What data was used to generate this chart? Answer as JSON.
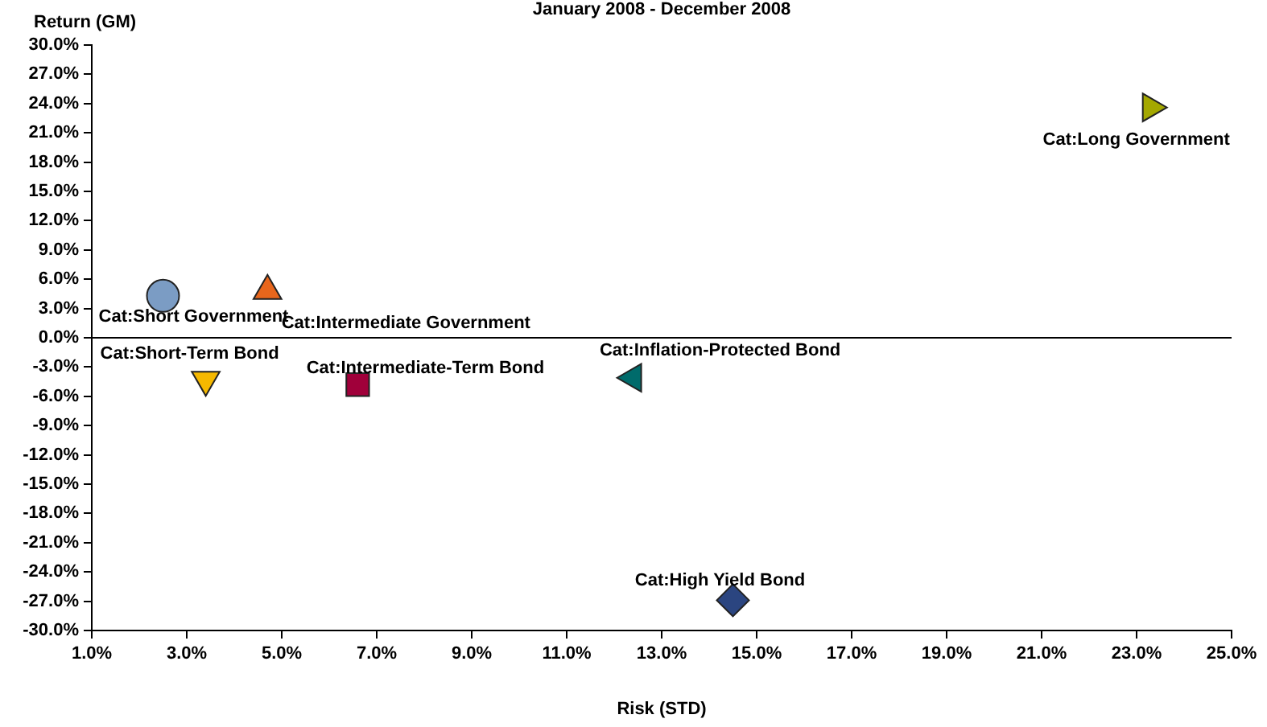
{
  "chart_data": {
    "type": "scatter",
    "title": "January 2008 - December 2008",
    "xlabel": "Risk (STD)",
    "ylabel": "Return (GM)",
    "xlim": [
      1,
      25
    ],
    "xticks": [
      {
        "value": 1,
        "label": "1.0%"
      },
      {
        "value": 3,
        "label": "3.0%"
      },
      {
        "value": 5,
        "label": "5.0%"
      },
      {
        "value": 7,
        "label": "7.0%"
      },
      {
        "value": 9,
        "label": "9.0%"
      },
      {
        "value": 11,
        "label": "11.0%"
      },
      {
        "value": 13,
        "label": "13.0%"
      },
      {
        "value": 15,
        "label": "15.0%"
      },
      {
        "value": 17,
        "label": "17.0%"
      },
      {
        "value": 19,
        "label": "19.0%"
      },
      {
        "value": 21,
        "label": "21.0%"
      },
      {
        "value": 23,
        "label": "23.0%"
      },
      {
        "value": 25,
        "label": "25.0%"
      }
    ],
    "ylim": [
      -30,
      30
    ],
    "yticks": [
      {
        "value": -30,
        "label": "-30.0%"
      },
      {
        "value": -27,
        "label": "-27.0%"
      },
      {
        "value": -24,
        "label": "-24.0%"
      },
      {
        "value": -21,
        "label": "-21.0%"
      },
      {
        "value": -18,
        "label": "-18.0%"
      },
      {
        "value": -15,
        "label": "-15.0%"
      },
      {
        "value": -12,
        "label": "-12.0%"
      },
      {
        "value": -9,
        "label": "-9.0%"
      },
      {
        "value": -6,
        "label": "-6.0%"
      },
      {
        "value": -3,
        "label": "-3.0%"
      },
      {
        "value": 0,
        "label": "0.0%"
      },
      {
        "value": 3,
        "label": "3.0%"
      },
      {
        "value": 6,
        "label": "6.0%"
      },
      {
        "value": 9,
        "label": "9.0%"
      },
      {
        "value": 12,
        "label": "12.0%"
      },
      {
        "value": 15,
        "label": "15.0%"
      },
      {
        "value": 18,
        "label": "18.0%"
      },
      {
        "value": 21,
        "label": "21.0%"
      },
      {
        "value": 24,
        "label": "24.0%"
      },
      {
        "value": 27,
        "label": "27.0%"
      },
      {
        "value": 30,
        "label": "30.0%"
      }
    ],
    "grid": false,
    "legend": false,
    "ref_lines": [
      {
        "axis": "y",
        "value": 0,
        "color": "#000000"
      }
    ],
    "series": [
      {
        "name": "Cat:Short Government",
        "color": "#7b9cc4",
        "marker": "circle",
        "x": [
          2.5
        ],
        "values": [
          4.3
        ]
      },
      {
        "name": "Cat:Intermediate Government",
        "color": "#e8661c",
        "marker": "triangle",
        "x": [
          4.7
        ],
        "values": [
          4.8
        ]
      },
      {
        "name": "Cat:Short-Term Bond",
        "color": "#f5b800",
        "marker": "triangle-down",
        "x": [
          3.4
        ],
        "values": [
          -4.3
        ]
      },
      {
        "name": "Cat:Intermediate-Term Bond",
        "color": "#a0003a",
        "marker": "square",
        "x": [
          6.6
        ],
        "values": [
          -4.8
        ]
      },
      {
        "name": "Cat:Inflation-Protected Bond",
        "color": "#006b6b",
        "marker": "triangle-left",
        "x": [
          12.4
        ],
        "values": [
          -4.1
        ]
      },
      {
        "name": "Cat:High Yield Bond",
        "color": "#2b4580",
        "marker": "diamond",
        "x": [
          14.5
        ],
        "values": [
          -26.9
        ]
      },
      {
        "name": "Cat:Long Government",
        "color": "#a4a800",
        "marker": "triangle-right",
        "x": [
          23.3
        ],
        "values": [
          23.6
        ]
      }
    ]
  }
}
